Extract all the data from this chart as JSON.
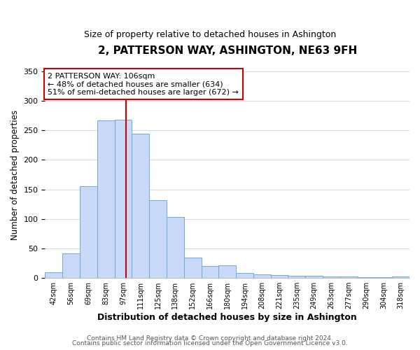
{
  "title": "2, PATTERSON WAY, ASHINGTON, NE63 9FH",
  "subtitle": "Size of property relative to detached houses in Ashington",
  "xlabel": "Distribution of detached houses by size in Ashington",
  "ylabel": "Number of detached properties",
  "bin_labels": [
    "42sqm",
    "56sqm",
    "69sqm",
    "83sqm",
    "97sqm",
    "111sqm",
    "125sqm",
    "138sqm",
    "152sqm",
    "166sqm",
    "180sqm",
    "194sqm",
    "208sqm",
    "221sqm",
    "235sqm",
    "249sqm",
    "263sqm",
    "277sqm",
    "290sqm",
    "304sqm",
    "318sqm"
  ],
  "bar_heights": [
    10,
    42,
    155,
    267,
    268,
    245,
    132,
    103,
    35,
    20,
    21,
    8,
    6,
    5,
    4,
    4,
    3,
    2,
    1,
    1,
    2
  ],
  "bar_color": "#c9daf8",
  "bar_edge_color": "#6fa8dc",
  "ylim": [
    0,
    350
  ],
  "yticks": [
    0,
    50,
    100,
    150,
    200,
    250,
    300,
    350
  ],
  "vline_color": "#cc0000",
  "annotation_line1": "2 PATTERSON WAY: 106sqm",
  "annotation_line2": "← 48% of detached houses are smaller (634)",
  "annotation_line3": "51% of semi-detached houses are larger (672) →",
  "annotation_box_color": "#cc0000",
  "footer_line1": "Contains HM Land Registry data © Crown copyright and database right 2024.",
  "footer_line2": "Contains public sector information licensed under the Open Government Licence v3.0.",
  "background_color": "#ffffff",
  "grid_color": "#d0dff0"
}
